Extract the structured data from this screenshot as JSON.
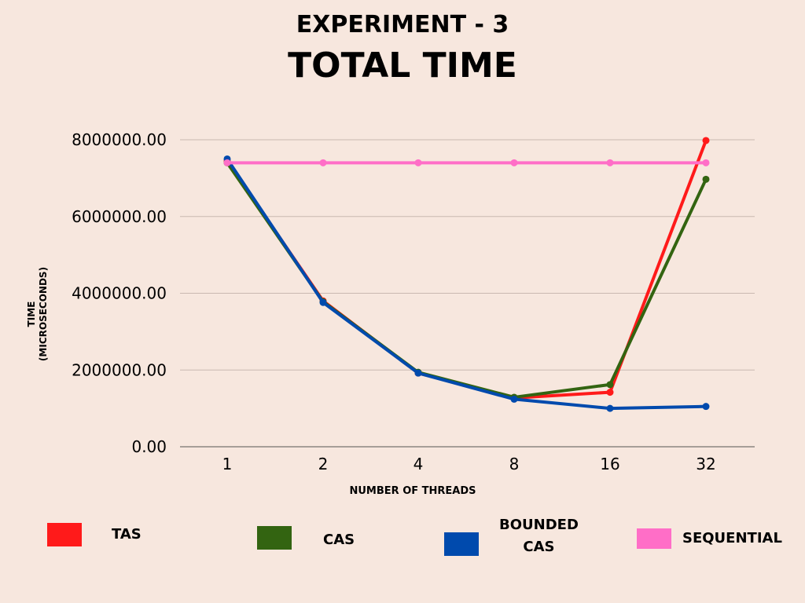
{
  "chart_data": {
    "type": "line",
    "subtitle": "EXPERIMENT - 3",
    "title": "TOTAL TIME",
    "xlabel": "NUMBER OF THREADS",
    "ylabel": "TIME\n(MICROSECONDS)",
    "categories": [
      "1",
      "2",
      "4",
      "8",
      "16",
      "32"
    ],
    "ylim": [
      0,
      8000000
    ],
    "yticks": [
      "0.00",
      "2000000.00",
      "4000000.00",
      "6000000.00",
      "8000000.00"
    ],
    "grid": true,
    "legend_position": "bottom",
    "series": [
      {
        "name": "TAS",
        "color": "#FF1A1A",
        "values": [
          7450000,
          3800000,
          1920000,
          1270000,
          1420000,
          7980000
        ]
      },
      {
        "name": "CAS",
        "color": "#336411",
        "values": [
          7400000,
          3780000,
          1940000,
          1290000,
          1620000,
          6970000
        ]
      },
      {
        "name": "BOUNDED\nCAS",
        "color": "#004AAD",
        "values": [
          7500000,
          3760000,
          1920000,
          1240000,
          1000000,
          1050000
        ]
      },
      {
        "name": "SEQUENTIAL",
        "color": "#FF6EC7",
        "values": [
          7400000,
          7400000,
          7400000,
          7400000,
          7400000,
          7400000
        ]
      }
    ]
  }
}
